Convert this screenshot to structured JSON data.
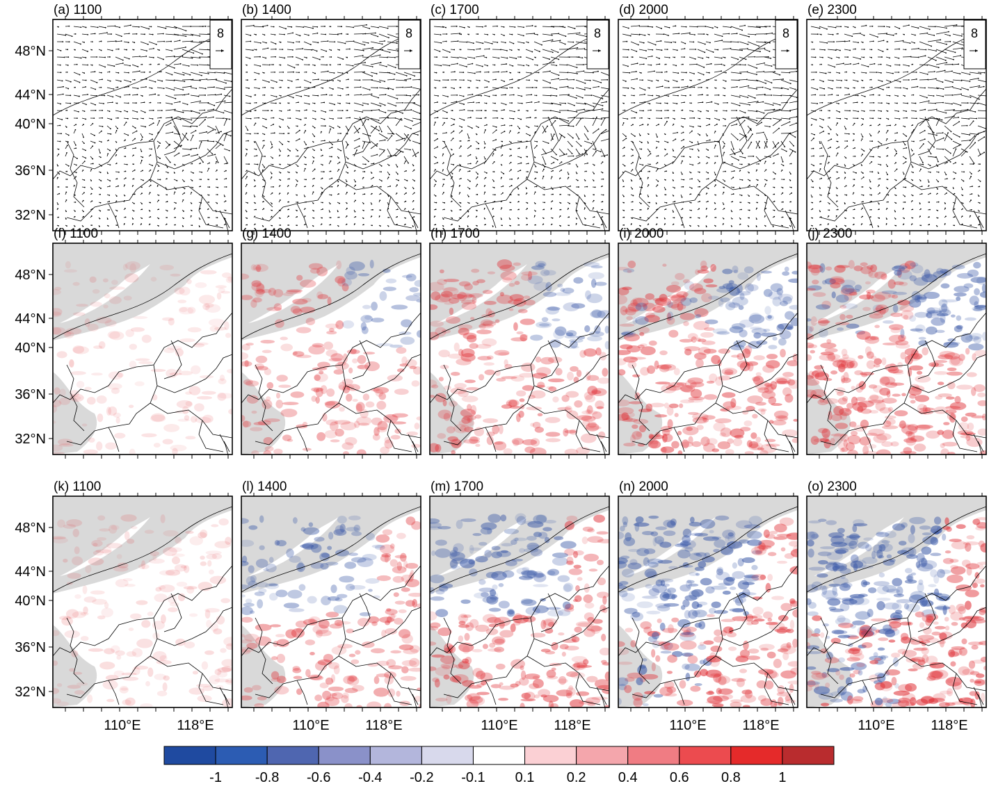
{
  "panel_labels": [
    "(a) 1100",
    "(b) 1400",
    "(c) 1700",
    "(d) 2000",
    "(e) 2300",
    "(f) 1100",
    "(g) 1400",
    "(h) 1700",
    "(i) 2000",
    "(j) 2300",
    "(k) 1100",
    "(l) 1400",
    "(m) 1700",
    "(n) 2000",
    "(o) 2300"
  ],
  "lat_ticks": [
    "48°N",
    "44°N",
    "40°N",
    "36°N",
    "32°N"
  ],
  "lon_ticks": [
    "110°E",
    "118°E"
  ],
  "reference_vector": "8",
  "colorbar": {
    "levels": [
      "-1",
      "-0.8",
      "-0.6",
      "-0.4",
      "-0.2",
      "-0.1",
      "0.1",
      "0.2",
      "0.4",
      "0.6",
      "0.8",
      "1"
    ],
    "colors": [
      "#1f4aa0",
      "#2c5cb3",
      "#4f66b0",
      "#8a91c9",
      "#b3b6dc",
      "#d8d9ec",
      "#ffffff",
      "#fbd0d4",
      "#f4a6ac",
      "#f07c83",
      "#ec4b4f",
      "#e52a2a",
      "#b92c2e"
    ]
  },
  "colors": {
    "terrain_mask": "#d9d9d9",
    "blue": "#3c5aa8",
    "red": "#e0353b"
  }
}
